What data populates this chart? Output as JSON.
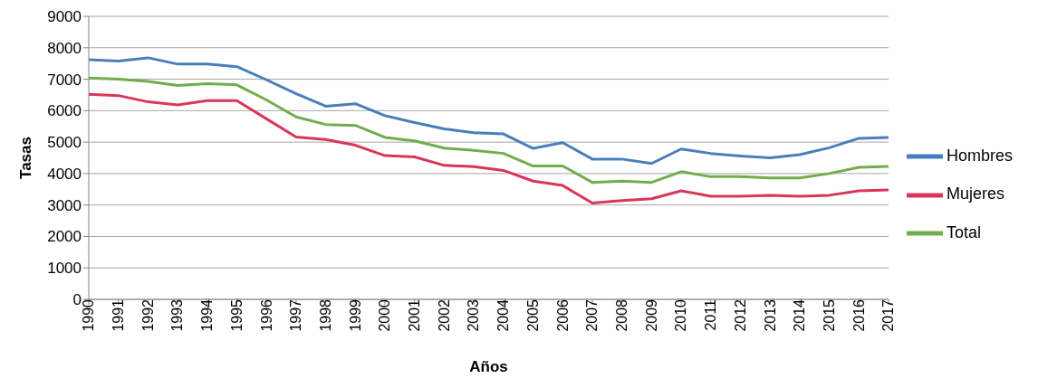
{
  "chart_data": {
    "type": "line",
    "xlabel": "Años",
    "ylabel": "Tasas",
    "categories": [
      "1990",
      "1991",
      "1992",
      "1993",
      "1994",
      "1995",
      "1996",
      "1997",
      "1998",
      "1999",
      "2000",
      "2001",
      "2002",
      "2003",
      "2004",
      "2005",
      "2006",
      "2007",
      "2008",
      "2009",
      "2010",
      "2011",
      "2012",
      "2013",
      "2014",
      "2015",
      "2016",
      "2017"
    ],
    "series": [
      {
        "name": "Hombres",
        "color": "#4a7ebb",
        "values": [
          7620,
          7580,
          7680,
          7480,
          7480,
          7400,
          6980,
          6540,
          6140,
          6220,
          5840,
          5620,
          5420,
          5300,
          5260,
          4800,
          4980,
          4460,
          4460,
          4320,
          4780,
          4640,
          4560,
          4500,
          4600,
          4820,
          5120,
          5150
        ]
      },
      {
        "name": "Mujeres",
        "color": "#d9365a",
        "values": [
          6520,
          6480,
          6280,
          6180,
          6320,
          6320,
          5740,
          5160,
          5080,
          4900,
          4570,
          4530,
          4260,
          4220,
          4100,
          3760,
          3620,
          3060,
          3140,
          3200,
          3450,
          3280,
          3280,
          3310,
          3280,
          3310,
          3450,
          3480
        ]
      },
      {
        "name": "Total",
        "color": "#72ac4d",
        "values": [
          7040,
          7000,
          6930,
          6800,
          6860,
          6820,
          6340,
          5800,
          5560,
          5530,
          5150,
          5040,
          4810,
          4740,
          4640,
          4240,
          4240,
          3720,
          3760,
          3720,
          4060,
          3900,
          3900,
          3860,
          3860,
          4000,
          4200,
          4230
        ]
      }
    ],
    "ylim": [
      0,
      9000
    ],
    "yticks": [
      0,
      1000,
      2000,
      3000,
      4000,
      5000,
      6000,
      7000,
      8000,
      9000
    ],
    "grid": "y",
    "legend": "right",
    "marker": "none",
    "line_style": "solid"
  }
}
